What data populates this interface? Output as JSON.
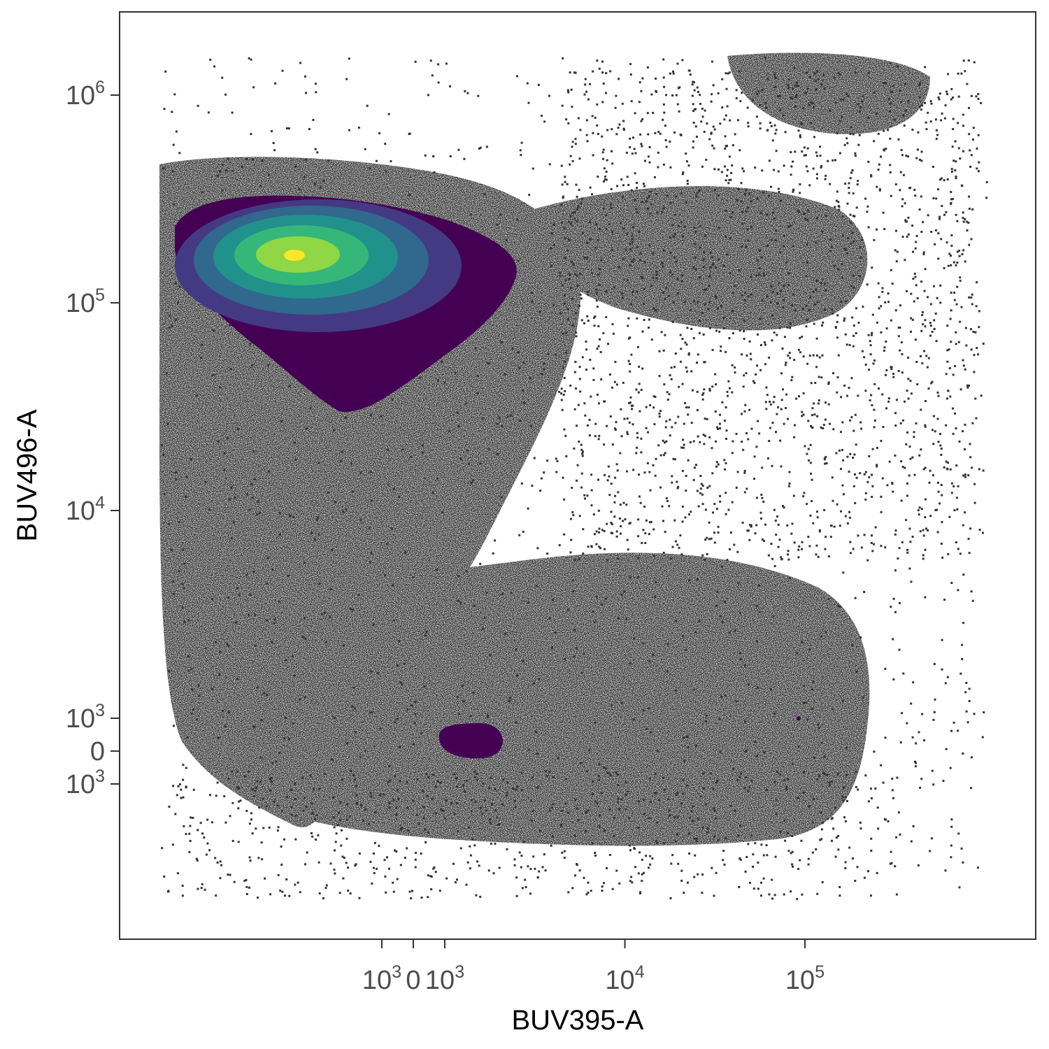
{
  "chart_data": {
    "type": "scatter",
    "xlabel": "BUV395-A",
    "ylabel": "BUV496-A",
    "scale": "biexponential",
    "grid": false,
    "legend": "none",
    "point_color": "#333333",
    "x_ticks": [
      {
        "value": -1000,
        "base": "10",
        "exp": "3"
      },
      {
        "value": 0,
        "base": "0",
        "exp": ""
      },
      {
        "value": 1000,
        "base": "10",
        "exp": "3"
      },
      {
        "value": 10000,
        "base": "10",
        "exp": "4"
      },
      {
        "value": 100000,
        "base": "10",
        "exp": "5"
      }
    ],
    "y_ticks": [
      {
        "value": -1000,
        "base": "10",
        "exp": "3"
      },
      {
        "value": 0,
        "base": "0",
        "exp": ""
      },
      {
        "value": 1000,
        "base": "10",
        "exp": "3"
      },
      {
        "value": 10000,
        "base": "10",
        "exp": "4"
      },
      {
        "value": 100000,
        "base": "10",
        "exp": "5"
      },
      {
        "value": 1000000,
        "base": "10",
        "exp": "6"
      }
    ],
    "populations": [
      {
        "x_center": 300,
        "y_center": 200000,
        "density": "high"
      },
      {
        "x_center": 40000,
        "y_center": 150000,
        "density": "medium"
      },
      {
        "x_center": 2000,
        "y_center": 300,
        "density": "high"
      },
      {
        "x_center": 50000,
        "y_center": 500,
        "density": "high"
      }
    ],
    "density_contours": {
      "colormap": "viridis",
      "levels": 7,
      "colors": [
        "#440154",
        "#443a83",
        "#31688e",
        "#21918c",
        "#35b779",
        "#8fd744",
        "#fde725"
      ]
    }
  }
}
